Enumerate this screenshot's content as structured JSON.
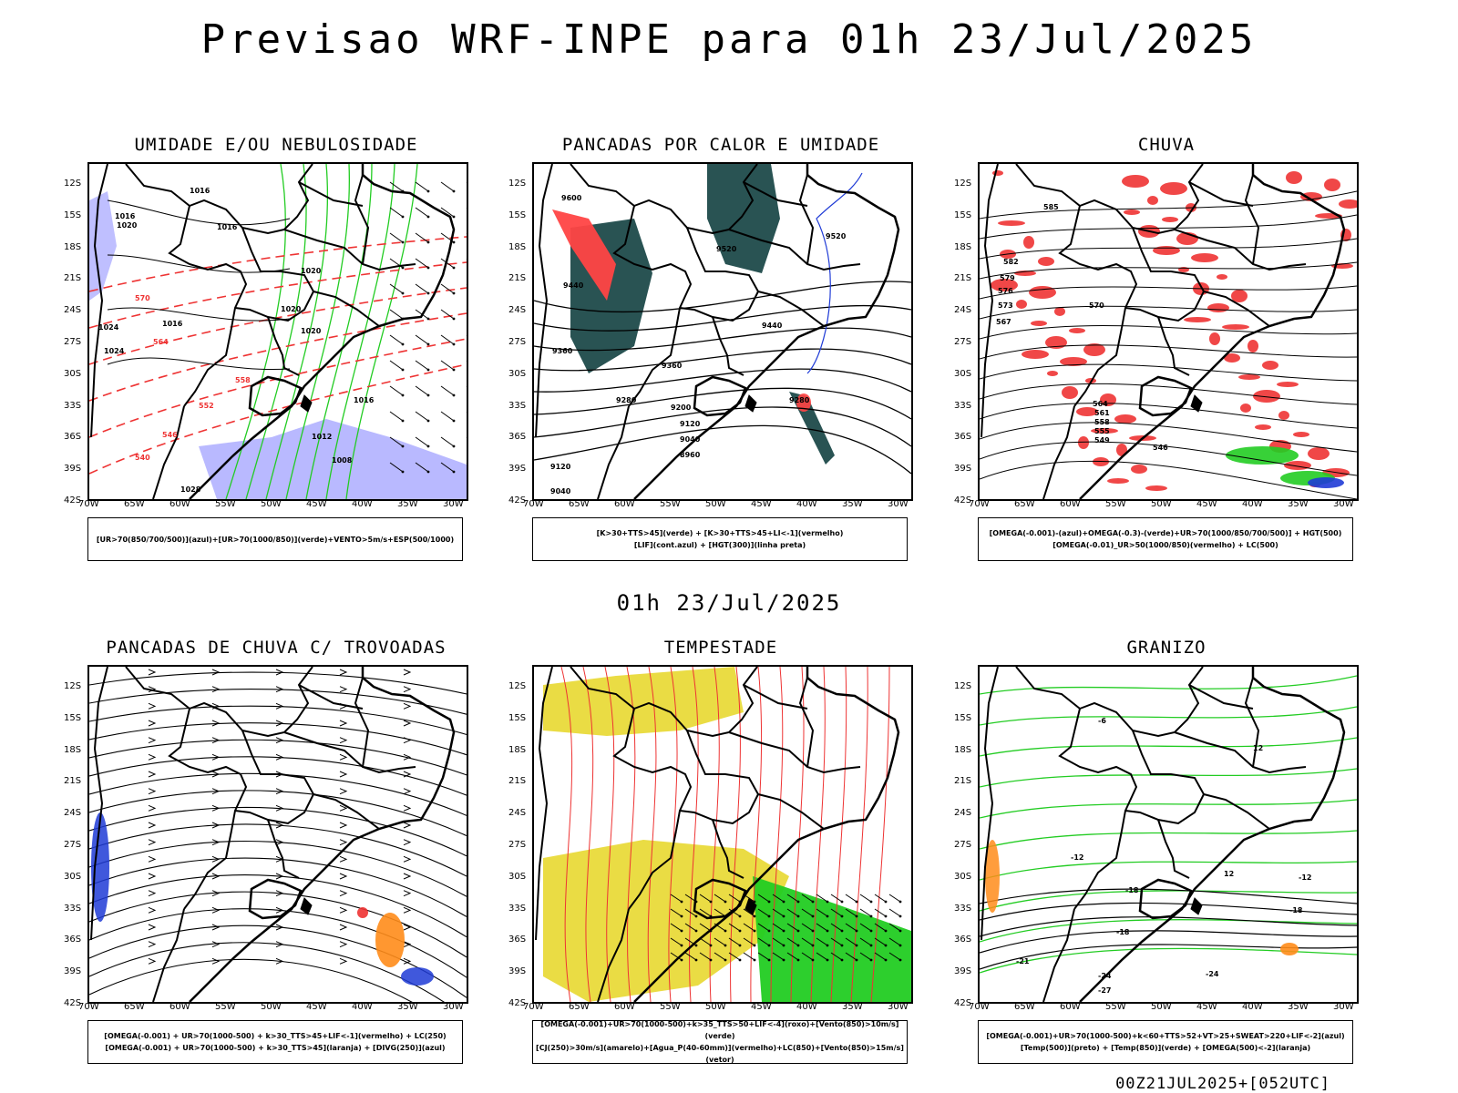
{
  "header": {
    "title": "Previsao WRF-INPE  para 01h 23/Jul/2025",
    "middle_time": "01h 23/Jul/2025",
    "run_stamp": "00Z21JUL2025+[052UTC]"
  },
  "axes": {
    "lat_labels": [
      "12S",
      "15S",
      "18S",
      "21S",
      "24S",
      "27S",
      "30S",
      "33S",
      "36S",
      "39S",
      "42S"
    ],
    "lon_labels": [
      "70W",
      "65W",
      "60W",
      "55W",
      "50W",
      "45W",
      "40W",
      "35W",
      "30W"
    ]
  },
  "panels": [
    {
      "title": "UMIDADE E/OU NEBULOSIDADE",
      "legend": [
        "[UR>70(850/700/500)](azul)+[UR>70(1000/850)](verde)+VENTO>5m/s+ESP(500/1000)"
      ],
      "labels": [
        "1016",
        "1016",
        "1020",
        "1016",
        "1020",
        "1020",
        "1016",
        "1024",
        "1020",
        "1024",
        "1016",
        "1012",
        "1008",
        "1028",
        "570",
        "564",
        "558",
        "552",
        "546",
        "540"
      ]
    },
    {
      "title": "PANCADAS POR CALOR E UMIDADE",
      "legend": [
        "[K>30+TTS>45](verde) + [K>30+TTS>45+LI<-1](vermelho)",
        "[LIF](cont.azul) + [HGT(300)](linha preta)"
      ],
      "labels": [
        "9600",
        "9520",
        "9520",
        "9440",
        "9440",
        "9360",
        "9360",
        "9280",
        "9280",
        "9200",
        "9120",
        "9040",
        "8960",
        "9120",
        "9040"
      ]
    },
    {
      "title": "CHUVA",
      "legend": [
        "[OMEGA(-0.001)-(azul)+OMEGA(-0.3)-(verde)+UR>70(1000/850/700/500)] + HGT(500)",
        "[OMEGA(-0.01)_UR>50(1000/850)(vermelho) + LC(500)"
      ],
      "labels": [
        "585",
        "582",
        "579",
        "576",
        "573",
        "570",
        "567",
        "564",
        "561",
        "558",
        "555",
        "549",
        "546"
      ]
    },
    {
      "title": "PANCADAS DE CHUVA C/ TROVOADAS",
      "legend": [
        "[OMEGA(-0.001) + UR>70(1000-500) + k>30_TTS>45+LIF<-1](vermelho) + LC(250)",
        "[OMEGA(-0.001) + UR>70(1000-500) + k>30_TTS>45](laranja) + [DIVG(250)](azul)"
      ],
      "labels": []
    },
    {
      "title": "TEMPESTADE",
      "legend": [
        "[OMEGA(-0.001)+UR>70(1000-500)+k>35_TTS>50+LIF<-4](roxo)+[Vento(850)>10m/s](verde)",
        "[CJ(250)>30m/s](amarelo)+[Agua_P(40-60mm)](vermelho)+LC(850)+[Vento(850)>15m/s](vetor)"
      ],
      "labels": []
    },
    {
      "title": "GRANIZO",
      "legend": [
        "[OMEGA(-0.001)+UR>70(1000-500)+k<60+TTS>52+VT>25+SWEAT>220+LIF<-2](azul)",
        "[Temp(500)](preto) + [Temp(850)](verde) + [OMEGA(500)<-2](laranja)"
      ],
      "labels": [
        "-6",
        "-12",
        "-12",
        "-18",
        "-18",
        "-18",
        "-21",
        "-24",
        "-27",
        "-24",
        "12",
        "12"
      ]
    }
  ]
}
